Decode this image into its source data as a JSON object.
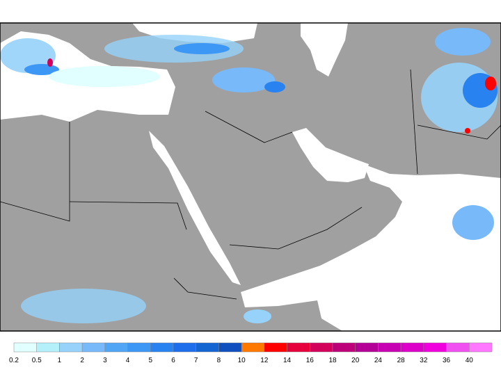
{
  "colorbar": {
    "bins": [
      0.2,
      0.5,
      1,
      2,
      3,
      4,
      5,
      6,
      7,
      8,
      10,
      12,
      14,
      16,
      18,
      20,
      24,
      28,
      32,
      36,
      40
    ],
    "colors": [
      "#e1ffff",
      "#b4f0fa",
      "#96d2fa",
      "#78b9fa",
      "#50a5f5",
      "#3c97f5",
      "#2883f0",
      "#1e6eeb",
      "#1464d2",
      "#0f50be",
      "#ff7800",
      "#ff0000",
      "#e6003c",
      "#d2005a",
      "#be0078",
      "#b40096",
      "#c800b4",
      "#dc00c8",
      "#f000dc",
      "#f050f0",
      "#ff78ff"
    ]
  }
}
